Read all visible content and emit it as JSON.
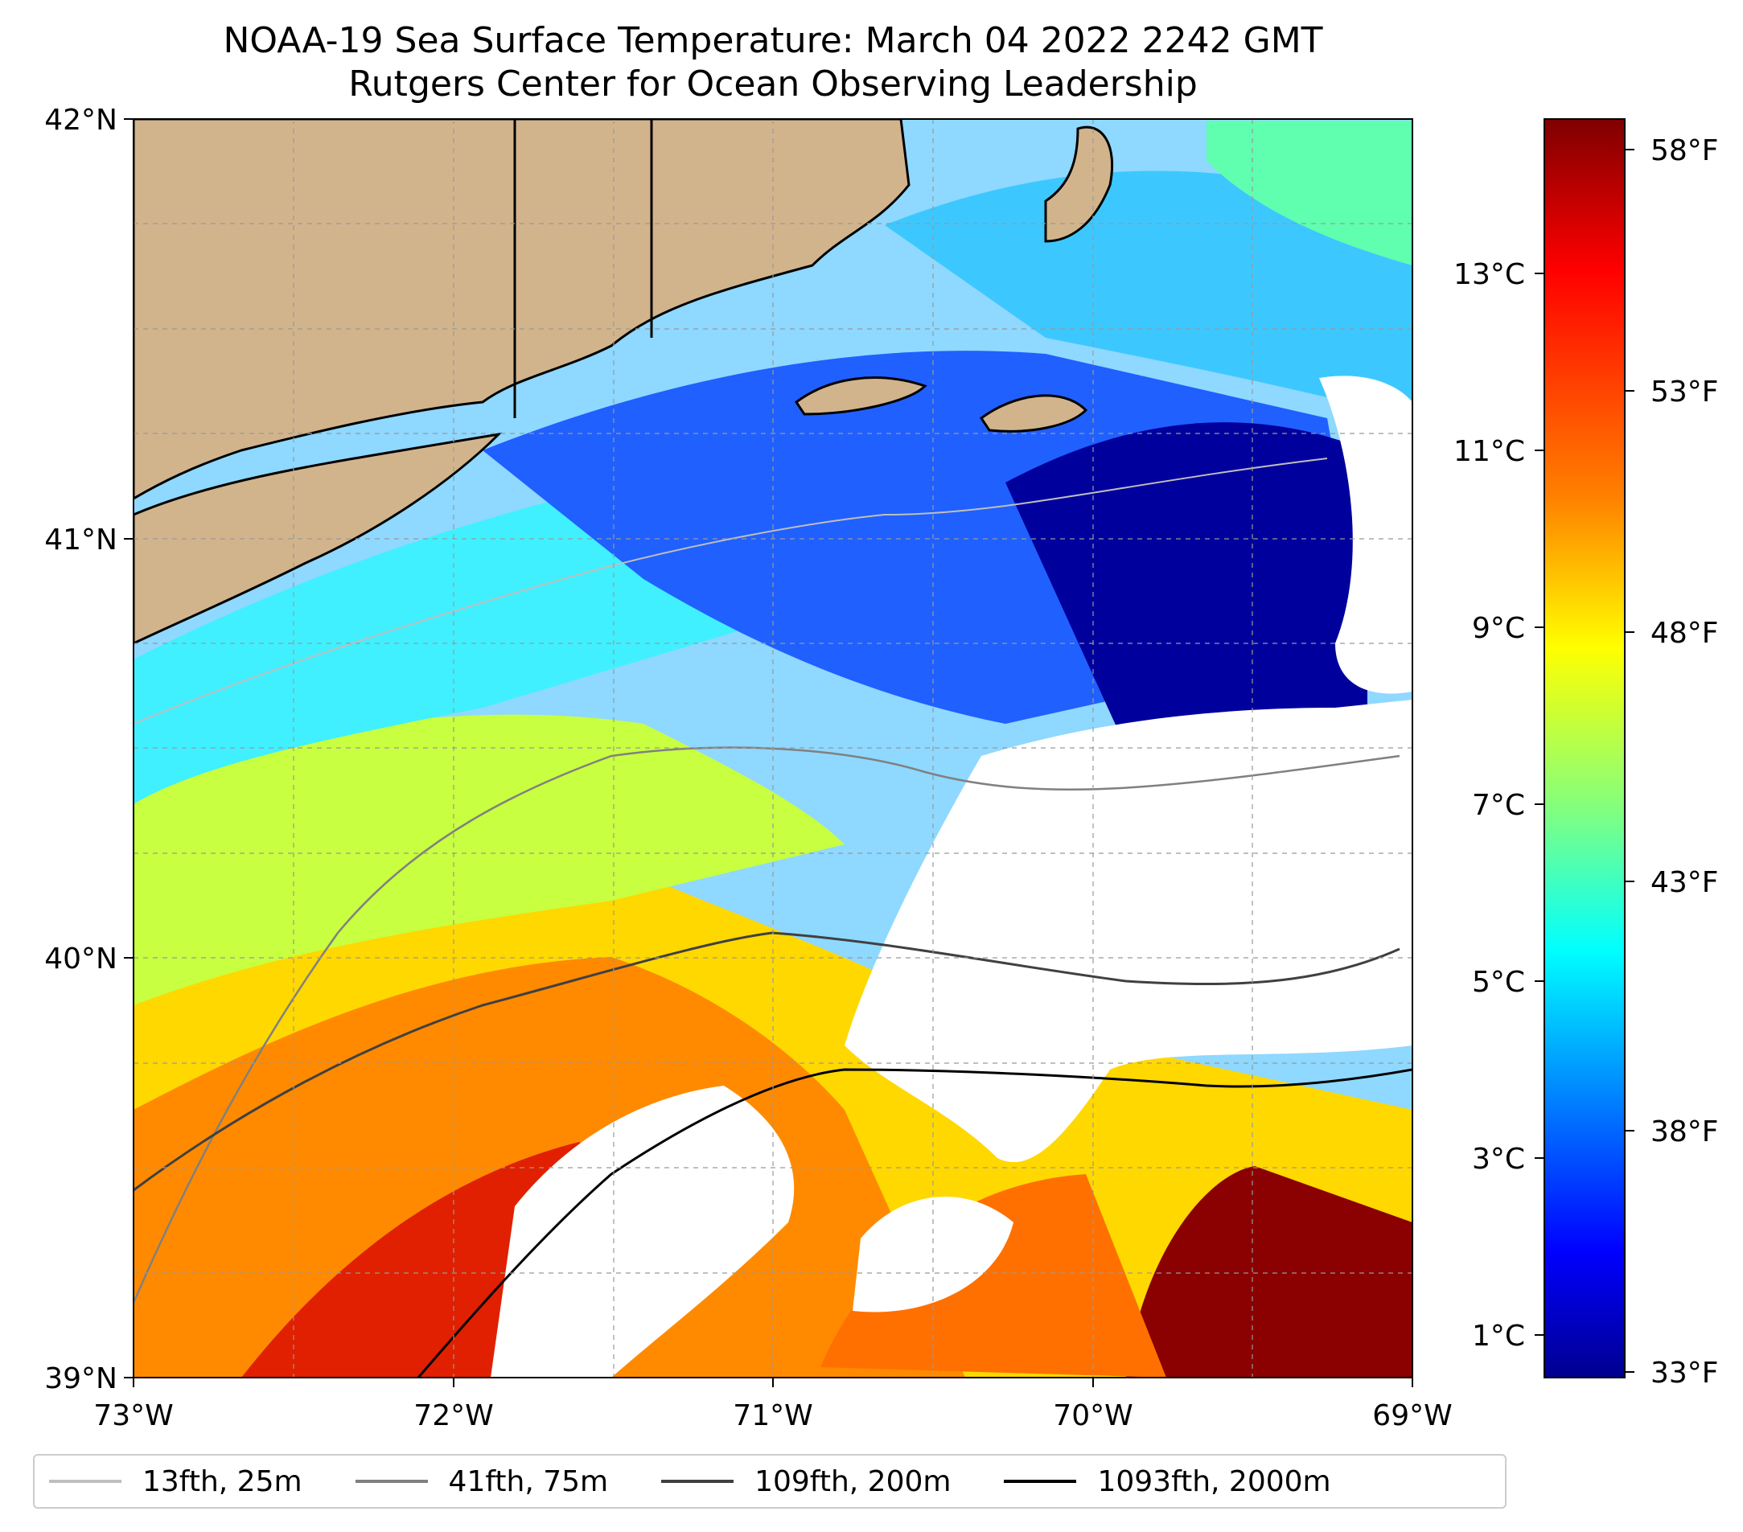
{
  "title": {
    "line1": "NOAA-19 Sea Surface Temperature: March 04 2022 2242 GMT",
    "line2": "Rutgers Center for Ocean Observing Leadership"
  },
  "map": {
    "lon_range": [
      -73,
      -69
    ],
    "lat_range": [
      39,
      42
    ],
    "x_ticks": [
      "73°W",
      "72°W",
      "71°W",
      "70°W",
      "69°W"
    ],
    "y_ticks": [
      "42°N",
      "41°N",
      "40°N",
      "39°N"
    ],
    "grid": true,
    "land_color": "#d2b48c",
    "cloud_mask_color": "#ffffff"
  },
  "colorbar": {
    "colormap": "jet",
    "celsius_ticks": [
      "13°C",
      "11°C",
      "9°C",
      "7°C",
      "5°C",
      "3°C",
      "1°C"
    ],
    "fahrenheit_ticks": [
      "58°F",
      "53°F",
      "48°F",
      "43°F",
      "38°F",
      "33°F"
    ],
    "colors": [
      "#7f0000",
      "#ff0000",
      "#ff8000",
      "#ffff00",
      "#80ff80",
      "#00ffff",
      "#0080ff",
      "#0000ff",
      "#00008f"
    ]
  },
  "legend": {
    "placement": "bottom",
    "items": [
      {
        "label": "13fth, 25m",
        "color": "#bfbfbf"
      },
      {
        "label": "41fth, 75m",
        "color": "#808080"
      },
      {
        "label": "109fth, 200m",
        "color": "#404040"
      },
      {
        "label": "1093fth, 2000m",
        "color": "#000000"
      }
    ]
  }
}
